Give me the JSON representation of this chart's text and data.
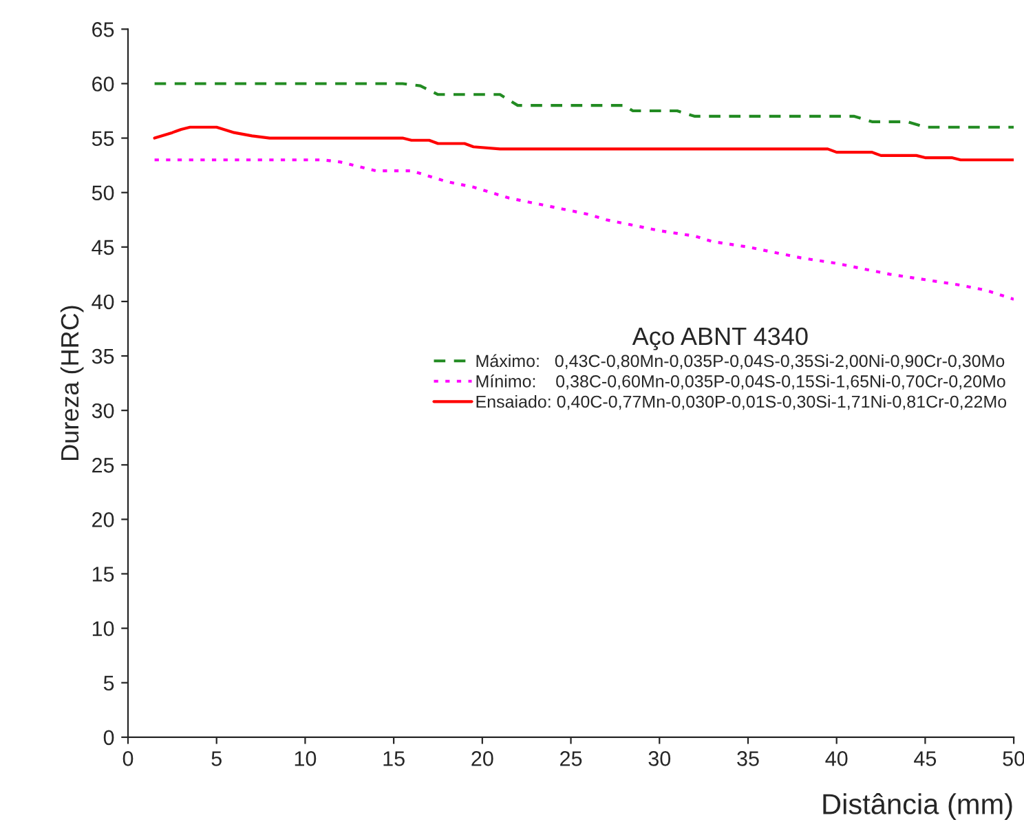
{
  "chart_data": {
    "type": "line",
    "xlabel": "Distância (mm)",
    "ylabel": "Dureza (HRC)",
    "legend_title": "Aço ABNT 4340",
    "xlim": [
      0,
      50
    ],
    "xticks": [
      0,
      5,
      10,
      15,
      20,
      25,
      30,
      35,
      40,
      45,
      50
    ],
    "ylim": [
      0,
      65
    ],
    "yticks": [
      0,
      5,
      10,
      15,
      20,
      25,
      30,
      35,
      40,
      45,
      50,
      55,
      60,
      65
    ],
    "grid": false,
    "legend": "right",
    "series": [
      {
        "name": "Máximo:   0,43C-0,80Mn-0,035P-0,04S-0,35Si-2,00Ni-0,90Cr-0,30Mo",
        "color": "#228b22",
        "line_style": "dashed",
        "x": [
          1.5,
          15.5,
          16.5,
          17.5,
          21,
          21.5,
          22,
          28,
          28.5,
          31,
          32,
          41,
          42,
          44,
          45,
          50
        ],
        "values": [
          60,
          60,
          59.8,
          59,
          59,
          58.5,
          58,
          58,
          57.5,
          57.5,
          57,
          57,
          56.5,
          56.5,
          56,
          56
        ]
      },
      {
        "name": "Mínimo:    0,38C-0,60Mn-0,035P-0,04S-0,15Si-1,65Ni-0,70Cr-0,20Mo",
        "color": "#ff00ff",
        "line_style": "dotted",
        "x": [
          1.5,
          11,
          12,
          14,
          16,
          17,
          18,
          19.5,
          20.5,
          21.5,
          23,
          24.5,
          26,
          27,
          28.5,
          30,
          32,
          33,
          35,
          36.5,
          38,
          40,
          41.5,
          43,
          45,
          47,
          48.5,
          50
        ],
        "values": [
          53,
          53,
          52.8,
          52,
          52,
          51.5,
          51,
          50.5,
          50,
          49.5,
          49,
          48.5,
          48,
          47.5,
          47,
          46.5,
          46,
          45.5,
          45,
          44.5,
          44,
          43.5,
          43,
          42.5,
          42,
          41.5,
          41,
          40.2
        ]
      },
      {
        "name": "Ensaiado: 0,40C-0,77Mn-0,030P-0,01S-0,30Si-1,71Ni-0,81Cr-0,22Mo",
        "color": "#ff0000",
        "line_style": "solid",
        "x": [
          1.5,
          2.5,
          3,
          3.5,
          5,
          6,
          7,
          8,
          15.5,
          16,
          17,
          17.5,
          19,
          19.5,
          21,
          39.5,
          40,
          42,
          42.5,
          44.5,
          45,
          46.5,
          47,
          50
        ],
        "values": [
          55,
          55.5,
          55.8,
          56,
          56,
          55.5,
          55.2,
          55,
          55,
          54.8,
          54.8,
          54.5,
          54.5,
          54.2,
          54,
          54,
          53.7,
          53.7,
          53.4,
          53.4,
          53.2,
          53.2,
          53,
          53
        ]
      }
    ]
  }
}
